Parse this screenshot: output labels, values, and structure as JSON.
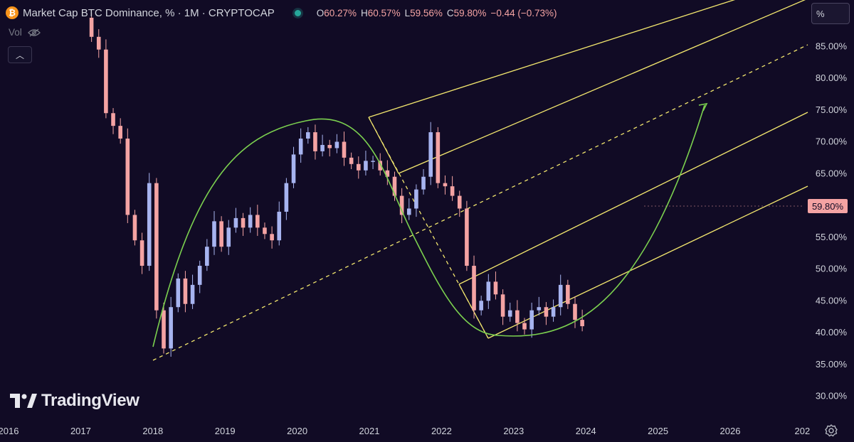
{
  "header": {
    "symbol": "Market Cap BTC Dominance, % · 1M · CRYPTOCAP",
    "icon": "bitcoin-icon",
    "ohlc": [
      {
        "k": "O",
        "v": "60.27%"
      },
      {
        "k": "H",
        "v": "60.57%"
      },
      {
        "k": "L",
        "v": "59.56%"
      },
      {
        "k": "C",
        "v": "59.80%"
      }
    ],
    "change": "−0.44 (−0.73%)",
    "vol_label": "Vol"
  },
  "scale_button": "%",
  "last_price": "59.80%",
  "watermark": "TradingView",
  "colors": {
    "background": "#110b25",
    "up": "#a7b4f0",
    "down": "#f4a3a3",
    "channel": "#f3e76e",
    "curve": "#7bd04f"
  },
  "chart_data": {
    "type": "candlestick",
    "timeframe": "1M",
    "x_axis_labels": [
      "2016",
      "2017",
      "2018",
      "2019",
      "2020",
      "2021",
      "2022",
      "2023",
      "2024",
      "2025",
      "2026",
      "202"
    ],
    "y_axis_labels": [
      "30.00%",
      "35.00%",
      "40.00%",
      "45.00%",
      "50.00%",
      "55.00%",
      "60.00%",
      "65.00%",
      "70.00%",
      "75.00%",
      "80.00%",
      "85.00%"
    ],
    "ylim": [
      28,
      90
    ],
    "closes": [
      {
        "t": 2017.15,
        "v": 86.5
      },
      {
        "t": 2017.25,
        "v": 84.5
      },
      {
        "t": 2017.35,
        "v": 74.5
      },
      {
        "t": 2017.45,
        "v": 72.5
      },
      {
        "t": 2017.55,
        "v": 70.5
      },
      {
        "t": 2017.65,
        "v": 58.5
      },
      {
        "t": 2017.75,
        "v": 54.5
      },
      {
        "t": 2017.85,
        "v": 50.5
      },
      {
        "t": 2017.95,
        "v": 63.5
      },
      {
        "t": 2018.05,
        "v": 43.5
      },
      {
        "t": 2018.15,
        "v": 37.5
      },
      {
        "t": 2018.25,
        "v": 44.0
      },
      {
        "t": 2018.35,
        "v": 48.5
      },
      {
        "t": 2018.45,
        "v": 44.5
      },
      {
        "t": 2018.55,
        "v": 47.5
      },
      {
        "t": 2018.65,
        "v": 50.5
      },
      {
        "t": 2018.75,
        "v": 53.5
      },
      {
        "t": 2018.85,
        "v": 57.5
      },
      {
        "t": 2018.95,
        "v": 53.5
      },
      {
        "t": 2019.05,
        "v": 56.5
      },
      {
        "t": 2019.15,
        "v": 58.0
      },
      {
        "t": 2019.25,
        "v": 56.5
      },
      {
        "t": 2019.35,
        "v": 58.5
      },
      {
        "t": 2019.45,
        "v": 56.5
      },
      {
        "t": 2019.55,
        "v": 55.5
      },
      {
        "t": 2019.65,
        "v": 54.5
      },
      {
        "t": 2019.75,
        "v": 59.0
      },
      {
        "t": 2019.85,
        "v": 63.5
      },
      {
        "t": 2019.95,
        "v": 68.0
      },
      {
        "t": 2020.05,
        "v": 70.5
      },
      {
        "t": 2020.15,
        "v": 71.5
      },
      {
        "t": 2020.25,
        "v": 68.5
      },
      {
        "t": 2020.35,
        "v": 69.5
      },
      {
        "t": 2020.45,
        "v": 69.0
      },
      {
        "t": 2020.55,
        "v": 70.0
      },
      {
        "t": 2020.65,
        "v": 67.5
      },
      {
        "t": 2020.75,
        "v": 66.5
      },
      {
        "t": 2020.85,
        "v": 65.5
      },
      {
        "t": 2020.95,
        "v": 67.0
      },
      {
        "t": 2021.05,
        "v": 67.0
      },
      {
        "t": 2021.15,
        "v": 65.5
      },
      {
        "t": 2021.25,
        "v": 64.5
      },
      {
        "t": 2021.35,
        "v": 61.5
      },
      {
        "t": 2021.45,
        "v": 58.5
      },
      {
        "t": 2021.55,
        "v": 59.5
      },
      {
        "t": 2021.65,
        "v": 62.5
      },
      {
        "t": 2021.75,
        "v": 64.5
      },
      {
        "t": 2021.85,
        "v": 71.5
      },
      {
        "t": 2021.95,
        "v": 63.5
      },
      {
        "t": 2022.05,
        "v": 63.0
      },
      {
        "t": 2022.15,
        "v": 61.5
      },
      {
        "t": 2022.25,
        "v": 59.5
      },
      {
        "t": 2022.35,
        "v": 50.5
      },
      {
        "t": 2022.45,
        "v": 43.5
      },
      {
        "t": 2022.55,
        "v": 45.0
      },
      {
        "t": 2022.65,
        "v": 48.0
      },
      {
        "t": 2022.75,
        "v": 46.0
      },
      {
        "t": 2022.85,
        "v": 42.5
      },
      {
        "t": 2022.95,
        "v": 43.5
      },
      {
        "t": 2023.05,
        "v": 41.5
      },
      {
        "t": 2023.15,
        "v": 40.5
      },
      {
        "t": 2023.25,
        "v": 43.5
      },
      {
        "t": 2023.35,
        "v": 44.0
      },
      {
        "t": 2023.45,
        "v": 42.5
      },
      {
        "t": 2023.55,
        "v": 44.0
      },
      {
        "t": 2023.65,
        "v": 47.5
      },
      {
        "t": 2023.75,
        "v": 44.5
      },
      {
        "t": 2023.85,
        "v": 42.0
      },
      {
        "t": 2023.95,
        "v": 41.0
      }
    ]
  }
}
